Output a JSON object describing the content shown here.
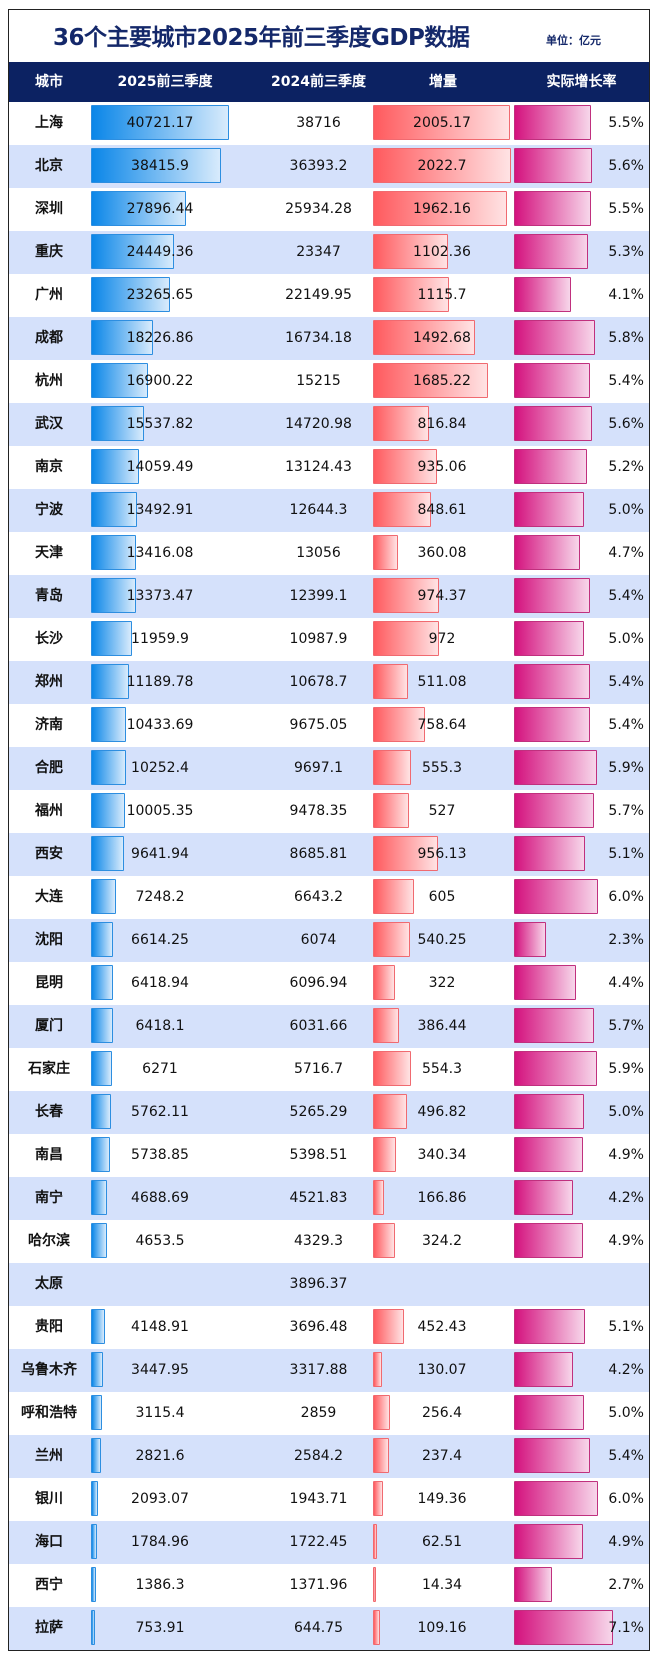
{
  "title": "36个主要城市2025年前三季度GDP数据",
  "unit": "单位：亿元",
  "headers": [
    "城市",
    "2025前三季度",
    "2024前三季度",
    "增量",
    "实际增长率"
  ],
  "colors": {
    "header_bg": "#0c2262",
    "row_alt": "#d5e1fb",
    "bar_2025": "#0a86e8",
    "bar_delta": "#ff5a5e",
    "bar_rate": "#d4127e"
  },
  "rows": [
    [
      "上海",
      "40721.17",
      "38716",
      "2005.17",
      "5.5%"
    ],
    [
      "北京",
      "38415.9",
      "36393.2",
      "2022.7",
      "5.6%"
    ],
    [
      "深圳",
      "27896.44",
      "25934.28",
      "1962.16",
      "5.5%"
    ],
    [
      "重庆",
      "24449.36",
      "23347",
      "1102.36",
      "5.3%"
    ],
    [
      "广州",
      "23265.65",
      "22149.95",
      "1115.7",
      "4.1%"
    ],
    [
      "成都",
      "18226.86",
      "16734.18",
      "1492.68",
      "5.8%"
    ],
    [
      "杭州",
      "16900.22",
      "15215",
      "1685.22",
      "5.4%"
    ],
    [
      "武汉",
      "15537.82",
      "14720.98",
      "816.84",
      "5.6%"
    ],
    [
      "南京",
      "14059.49",
      "13124.43",
      "935.06",
      "5.2%"
    ],
    [
      "宁波",
      "13492.91",
      "12644.3",
      "848.61",
      "5.0%"
    ],
    [
      "天津",
      "13416.08",
      "13056",
      "360.08",
      "4.7%"
    ],
    [
      "青岛",
      "13373.47",
      "12399.1",
      "974.37",
      "5.4%"
    ],
    [
      "长沙",
      "11959.9",
      "10987.9",
      "972",
      "5.0%"
    ],
    [
      "郑州",
      "11189.78",
      "10678.7",
      "511.08",
      "5.4%"
    ],
    [
      "济南",
      "10433.69",
      "9675.05",
      "758.64",
      "5.4%"
    ],
    [
      "合肥",
      "10252.4",
      "9697.1",
      "555.3",
      "5.9%"
    ],
    [
      "福州",
      "10005.35",
      "9478.35",
      "527",
      "5.7%"
    ],
    [
      "西安",
      "9641.94",
      "8685.81",
      "956.13",
      "5.1%"
    ],
    [
      "大连",
      "7248.2",
      "6643.2",
      "605",
      "6.0%"
    ],
    [
      "沈阳",
      "6614.25",
      "6074",
      "540.25",
      "2.3%"
    ],
    [
      "昆明",
      "6418.94",
      "6096.94",
      "322",
      "4.4%"
    ],
    [
      "厦门",
      "6418.1",
      "6031.66",
      "386.44",
      "5.7%"
    ],
    [
      "石家庄",
      "6271",
      "5716.7",
      "554.3",
      "5.9%"
    ],
    [
      "长春",
      "5762.11",
      "5265.29",
      "496.82",
      "5.0%"
    ],
    [
      "南昌",
      "5738.85",
      "5398.51",
      "340.34",
      "4.9%"
    ],
    [
      "南宁",
      "4688.69",
      "4521.83",
      "166.86",
      "4.2%"
    ],
    [
      "哈尔滨",
      "4653.5",
      "4329.3",
      "324.2",
      "4.9%"
    ],
    [
      "太原",
      "",
      "3896.37",
      "",
      ""
    ],
    [
      "贵阳",
      "4148.91",
      "3696.48",
      "452.43",
      "5.1%"
    ],
    [
      "乌鲁木齐",
      "3447.95",
      "3317.88",
      "130.07",
      "4.2%"
    ],
    [
      "呼和浩特",
      "3115.4",
      "2859",
      "256.4",
      "5.0%"
    ],
    [
      "兰州",
      "2821.6",
      "2584.2",
      "237.4",
      "5.4%"
    ],
    [
      "银川",
      "2093.07",
      "1943.71",
      "149.36",
      "6.0%"
    ],
    [
      "海口",
      "1784.96",
      "1722.45",
      "62.51",
      "4.9%"
    ],
    [
      "西宁",
      "1386.3",
      "1371.96",
      "14.34",
      "2.7%"
    ],
    [
      "拉萨",
      "753.91",
      "644.75",
      "109.16",
      "7.1%"
    ]
  ]
}
